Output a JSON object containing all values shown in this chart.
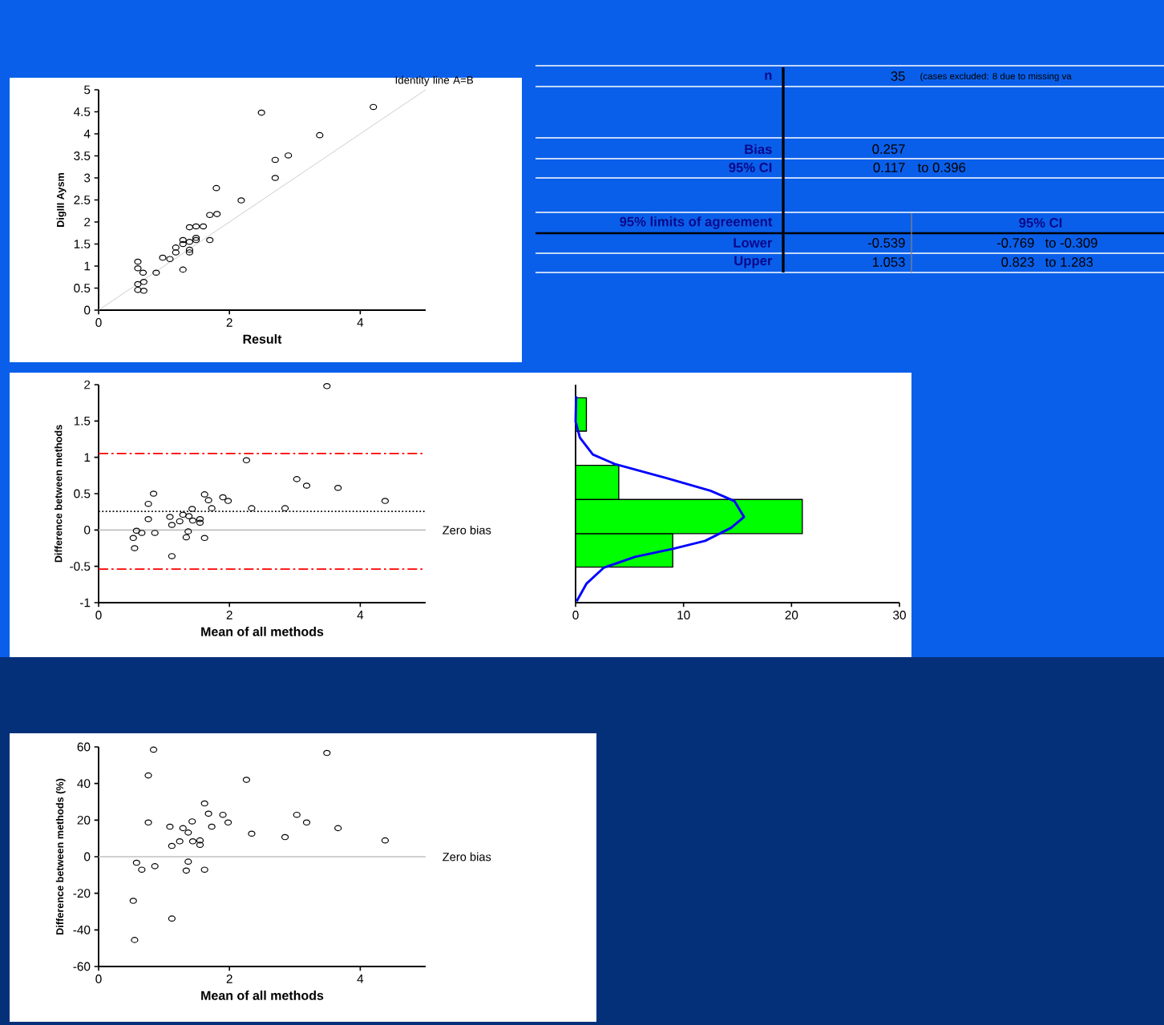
{
  "chart_data": [
    {
      "type": "scatter",
      "xlabel": "Result",
      "ylabel": "DigIII Aysm",
      "xlim": [
        0,
        5
      ],
      "xticks": [
        0,
        2,
        4
      ],
      "ylim": [
        0,
        5
      ],
      "yticks": [
        0,
        0.5,
        1,
        1.5,
        2,
        2.5,
        3,
        3.5,
        4,
        4.5,
        5
      ],
      "marker": "circle",
      "grid": false,
      "series": [
        {
          "type": "scatter",
          "color": "#000000",
          "x": [
            2.49,
            4.2,
            3.38,
            2.9,
            2.7,
            2.7,
            1.8,
            2.18,
            1.7,
            1.81,
            1.39,
            1.49,
            1.6,
            1.49,
            1.49,
            1.7,
            1.29,
            1.29,
            1.39,
            1.18,
            1.18,
            1.39,
            1.39,
            0.98,
            1.09,
            1.29,
            0.88,
            0.6,
            0.6,
            0.68,
            0.69,
            0.6,
            0.6,
            0.69
          ],
          "values": [
            4.48,
            4.61,
            3.97,
            3.51,
            3.41,
            3.0,
            2.77,
            2.49,
            2.16,
            2.18,
            1.88,
            1.9,
            1.9,
            1.64,
            1.59,
            1.59,
            1.59,
            1.5,
            1.55,
            1.42,
            1.31,
            1.37,
            1.31,
            1.19,
            1.16,
            0.92,
            0.85,
            1.1,
            0.95,
            0.85,
            0.64,
            0.59,
            0.46,
            0.44
          ]
        },
        {
          "type": "line",
          "name": "Identity line A=B",
          "color": "#c0c0c0",
          "marker": "none",
          "x": [
            0,
            5
          ],
          "values": [
            0,
            5
          ]
        }
      ]
    },
    {
      "type": "scatter",
      "xlabel": "Mean of all methods",
      "ylabel": "Difference between methods",
      "xlim": [
        0,
        5
      ],
      "xticks": [
        0,
        2,
        4
      ],
      "ylim": [
        -1,
        2
      ],
      "yticks": [
        -1,
        -0.5,
        0,
        0.5,
        1,
        1.5,
        2
      ],
      "marker": "circle",
      "grid": false,
      "series": [
        {
          "type": "scatter",
          "color": "#000000",
          "x": [
            3.49,
            2.26,
            3.03,
            3.18,
            3.66,
            4.38,
            0.84,
            0.76,
            0.76,
            1.62,
            1.68,
            1.9,
            1.98,
            1.73,
            2.34,
            2.85,
            1.43,
            1.09,
            1.29,
            1.38,
            1.24,
            1.44,
            1.55,
            1.55,
            1.12,
            0.58,
            0.66,
            0.86,
            1.37,
            0.53,
            1.34,
            1.62,
            0.55,
            1.12
          ],
          "values": [
            1.98,
            0.96,
            0.7,
            0.61,
            0.58,
            0.4,
            0.5,
            0.36,
            0.15,
            0.49,
            0.41,
            0.45,
            0.4,
            0.3,
            0.3,
            0.3,
            0.29,
            0.18,
            0.21,
            0.19,
            0.12,
            0.13,
            0.15,
            0.1,
            0.07,
            -0.01,
            -0.04,
            -0.04,
            -0.02,
            -0.11,
            -0.1,
            -0.11,
            -0.25,
            -0.36
          ]
        }
      ],
      "ref_lines": [
        {
          "axis": "y",
          "value": 0,
          "label": "Zero bias",
          "color": "#c0c0c0",
          "line_style": "solid"
        },
        {
          "axis": "y",
          "value": 0.257,
          "color": "#000000",
          "line_style": "dotted"
        },
        {
          "axis": "y",
          "value": -0.539,
          "color": "#ff0000",
          "line_style": "dashdot"
        },
        {
          "axis": "y",
          "value": 1.053,
          "color": "#ff0000",
          "line_style": "dashdot"
        }
      ]
    },
    {
      "type": "histogram",
      "orientation": "horizontal",
      "bins": [
        -0.51,
        -0.05,
        0.42,
        0.89,
        1.36,
        1.82
      ],
      "values": [
        9,
        21,
        4,
        0,
        1
      ],
      "color": "#00ff00",
      "xlim": [
        0,
        30
      ],
      "xticks": [
        0,
        10,
        20,
        30
      ],
      "ylim": [
        -1,
        2
      ],
      "tick_labels": "x",
      "grid": false,
      "series": [
        {
          "type": "line",
          "color": "#0000ff",
          "x": [
            -0.98,
            -0.74,
            -0.52,
            -0.37,
            -0.26,
            -0.15,
            0.03,
            0.18,
            0.4,
            0.54,
            0.71,
            0.91,
            1.04,
            1.27,
            1.49,
            1.84
          ],
          "values": [
            0.1,
            1.0,
            2.6,
            5.5,
            9.0,
            12.0,
            14.4,
            15.6,
            14.7,
            12.5,
            8.5,
            3.6,
            1.6,
            0.4,
            0,
            0.05
          ]
        }
      ]
    },
    {
      "type": "scatter",
      "xlabel": "Mean of all methods",
      "ylabel": "Difference between methods (%)",
      "xlim": [
        0,
        5
      ],
      "xticks": [
        0,
        2,
        4
      ],
      "ylim": [
        -60,
        60
      ],
      "yticks": [
        -60,
        -40,
        -20,
        0,
        20,
        40,
        60
      ],
      "marker": "circle",
      "grid": false,
      "series": [
        {
          "type": "scatter",
          "color": "#000000",
          "x": [
            0.84,
            0.76,
            2.26,
            3.49,
            1.62,
            1.68,
            1.9,
            3.03,
            0.76,
            1.98,
            3.18,
            1.09,
            1.73,
            1.43,
            1.29,
            3.66,
            1.37,
            2.34,
            2.85,
            4.38,
            1.24,
            1.44,
            1.55,
            1.55,
            1.12,
            0.58,
            0.66,
            0.86,
            1.37,
            1.34,
            1.62,
            0.53,
            1.12,
            0.55
          ],
          "values": [
            58.5,
            44.4,
            42.0,
            56.7,
            29.1,
            23.5,
            22.9,
            22.9,
            18.7,
            18.7,
            18.7,
            16.4,
            16.4,
            19.3,
            15.6,
            15.6,
            13.2,
            12.6,
            10.7,
            8.9,
            8.4,
            8.4,
            8.9,
            6.5,
            5.9,
            -3.3,
            -7.1,
            -5.2,
            -2.7,
            -7.6,
            -7.1,
            -24.1,
            -33.8,
            -45.5
          ]
        }
      ],
      "ref_lines": [
        {
          "axis": "y",
          "value": 0,
          "label": "Zero bias",
          "color": "#c0c0c0",
          "line_style": "solid"
        }
      ]
    },
    {
      "type": "other",
      "annotations": [
        "n",
        "35",
        "(cases excluded: 8 due to missing va",
        "Bias",
        "0.257",
        "95% CI",
        "0.117",
        "to 0.396",
        "95% limits of agreement",
        "95% CI",
        "Lower",
        "-0.539",
        "-0.769",
        "to -0.309",
        "Upper",
        "1.053",
        "0.823",
        "to 1.283"
      ]
    }
  ]
}
